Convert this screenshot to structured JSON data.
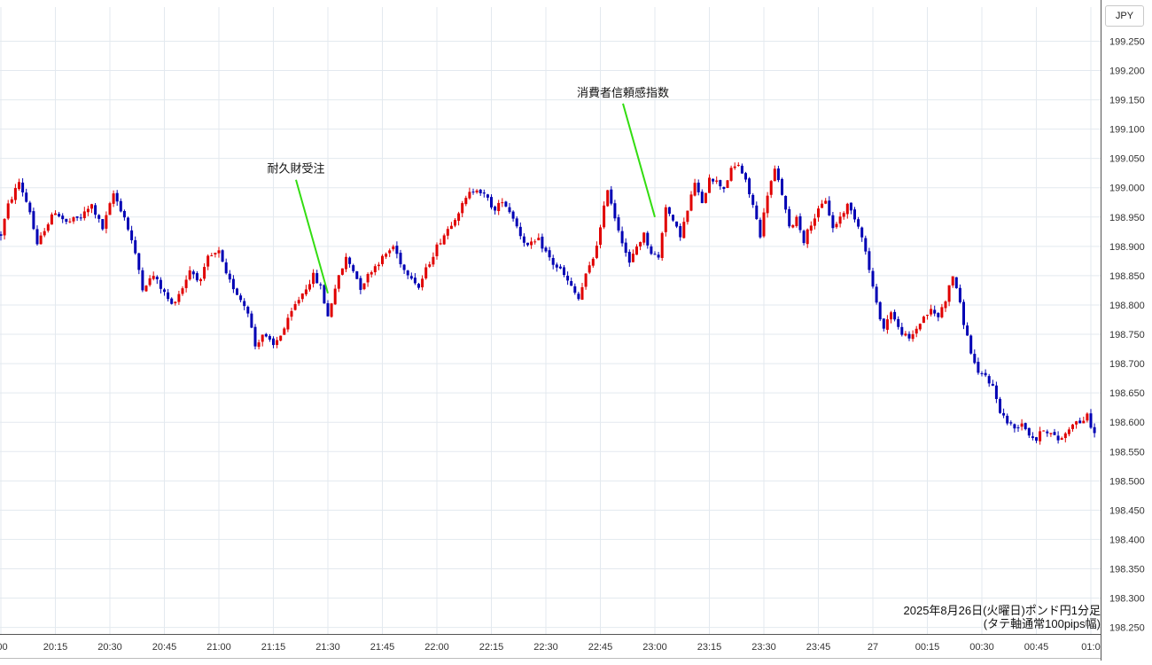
{
  "currency_button": "JPY",
  "caption": {
    "line1": "2025年8月26日(火曜日)ポンド円1分足",
    "line2": "(タテ軸通常100pips幅)"
  },
  "colors": {
    "up": "#e00000",
    "down": "#0000b4",
    "grid": "#e3e9ef",
    "annotation_line": "#33dd11"
  },
  "chart_data": {
    "type": "candlestick",
    "title": "",
    "currency": "JPY",
    "interval": "1 minute",
    "y_range": [
      198.25,
      199.3
    ],
    "y_ticks": [
      "199.250",
      "199.200",
      "199.150",
      "199.100",
      "199.050",
      "199.000",
      "198.950",
      "198.900",
      "198.850",
      "198.800",
      "198.750",
      "198.700",
      "198.650",
      "198.600",
      "198.550",
      "198.500",
      "198.450",
      "198.400",
      "198.350",
      "198.300",
      "198.250"
    ],
    "x_range": [
      "20:00",
      "01:00"
    ],
    "x_ticks": [
      ":00",
      "20:15",
      "20:30",
      "20:45",
      "21:00",
      "21:15",
      "21:30",
      "21:45",
      "22:00",
      "22:15",
      "22:30",
      "22:45",
      "23:00",
      "23:15",
      "23:30",
      "23:45",
      "27",
      "00:15",
      "00:30",
      "00:45",
      "01:0"
    ],
    "x_tick_minutes": [
      0,
      15,
      30,
      45,
      60,
      75,
      90,
      105,
      120,
      135,
      150,
      165,
      180,
      195,
      210,
      225,
      240,
      255,
      270,
      285,
      300
    ],
    "grid": true,
    "close_path": [
      {
        "t": 0,
        "p": 198.92
      },
      {
        "t": 2,
        "p": 198.97
      },
      {
        "t": 5,
        "p": 199.01
      },
      {
        "t": 8,
        "p": 198.96
      },
      {
        "t": 10,
        "p": 198.9
      },
      {
        "t": 12,
        "p": 198.93
      },
      {
        "t": 15,
        "p": 198.96
      },
      {
        "t": 18,
        "p": 198.94
      },
      {
        "t": 22,
        "p": 198.95
      },
      {
        "t": 25,
        "p": 198.97
      },
      {
        "t": 28,
        "p": 198.93
      },
      {
        "t": 31,
        "p": 198.99
      },
      {
        "t": 34,
        "p": 198.95
      },
      {
        "t": 36,
        "p": 198.91
      },
      {
        "t": 38,
        "p": 198.86
      },
      {
        "t": 39,
        "p": 198.83
      },
      {
        "t": 42,
        "p": 198.85
      },
      {
        "t": 45,
        "p": 198.82
      },
      {
        "t": 47,
        "p": 198.8
      },
      {
        "t": 50,
        "p": 198.83
      },
      {
        "t": 52,
        "p": 198.86
      },
      {
        "t": 55,
        "p": 198.84
      },
      {
        "t": 57,
        "p": 198.88
      },
      {
        "t": 60,
        "p": 198.89
      },
      {
        "t": 62,
        "p": 198.85
      },
      {
        "t": 64,
        "p": 198.83
      },
      {
        "t": 66,
        "p": 198.81
      },
      {
        "t": 68,
        "p": 198.79
      },
      {
        "t": 70,
        "p": 198.73
      },
      {
        "t": 72,
        "p": 198.75
      },
      {
        "t": 75,
        "p": 198.73
      },
      {
        "t": 78,
        "p": 198.76
      },
      {
        "t": 81,
        "p": 198.8
      },
      {
        "t": 84,
        "p": 198.83
      },
      {
        "t": 86,
        "p": 198.85
      },
      {
        "t": 88,
        "p": 198.83
      },
      {
        "t": 90,
        "p": 198.78
      },
      {
        "t": 92,
        "p": 198.83
      },
      {
        "t": 95,
        "p": 198.88
      },
      {
        "t": 97,
        "p": 198.86
      },
      {
        "t": 99,
        "p": 198.83
      },
      {
        "t": 102,
        "p": 198.86
      },
      {
        "t": 105,
        "p": 198.88
      },
      {
        "t": 108,
        "p": 198.9
      },
      {
        "t": 111,
        "p": 198.86
      },
      {
        "t": 113,
        "p": 198.85
      },
      {
        "t": 115,
        "p": 198.83
      },
      {
        "t": 117,
        "p": 198.86
      },
      {
        "t": 120,
        "p": 198.9
      },
      {
        "t": 123,
        "p": 198.93
      },
      {
        "t": 126,
        "p": 198.96
      },
      {
        "t": 129,
        "p": 198.99
      },
      {
        "t": 131,
        "p": 199.0
      },
      {
        "t": 134,
        "p": 198.98
      },
      {
        "t": 136,
        "p": 198.96
      },
      {
        "t": 138,
        "p": 198.98
      },
      {
        "t": 141,
        "p": 198.95
      },
      {
        "t": 143,
        "p": 198.92
      },
      {
        "t": 145,
        "p": 198.9
      },
      {
        "t": 148,
        "p": 198.91
      },
      {
        "t": 150,
        "p": 198.89
      },
      {
        "t": 152,
        "p": 198.87
      },
      {
        "t": 154,
        "p": 198.86
      },
      {
        "t": 156,
        "p": 198.84
      },
      {
        "t": 158,
        "p": 198.82
      },
      {
        "t": 159,
        "p": 198.81
      },
      {
        "t": 161,
        "p": 198.85
      },
      {
        "t": 163,
        "p": 198.88
      },
      {
        "t": 165,
        "p": 198.93
      },
      {
        "t": 167,
        "p": 199.0
      },
      {
        "t": 169,
        "p": 198.95
      },
      {
        "t": 171,
        "p": 198.91
      },
      {
        "t": 173,
        "p": 198.87
      },
      {
        "t": 175,
        "p": 198.9
      },
      {
        "t": 177,
        "p": 198.92
      },
      {
        "t": 179,
        "p": 198.89
      },
      {
        "t": 181,
        "p": 198.88
      },
      {
        "t": 183,
        "p": 198.97
      },
      {
        "t": 185,
        "p": 198.94
      },
      {
        "t": 187,
        "p": 198.92
      },
      {
        "t": 189,
        "p": 198.96
      },
      {
        "t": 191,
        "p": 199.01
      },
      {
        "t": 193,
        "p": 198.97
      },
      {
        "t": 195,
        "p": 199.02
      },
      {
        "t": 197,
        "p": 199.01
      },
      {
        "t": 199,
        "p": 199.0
      },
      {
        "t": 201,
        "p": 199.03
      },
      {
        "t": 203,
        "p": 199.04
      },
      {
        "t": 205,
        "p": 199.01
      },
      {
        "t": 207,
        "p": 198.97
      },
      {
        "t": 209,
        "p": 198.92
      },
      {
        "t": 211,
        "p": 198.99
      },
      {
        "t": 213,
        "p": 199.03
      },
      {
        "t": 215,
        "p": 198.99
      },
      {
        "t": 217,
        "p": 198.93
      },
      {
        "t": 219,
        "p": 198.95
      },
      {
        "t": 221,
        "p": 198.91
      },
      {
        "t": 223,
        "p": 198.94
      },
      {
        "t": 225,
        "p": 198.96
      },
      {
        "t": 227,
        "p": 198.98
      },
      {
        "t": 229,
        "p": 198.93
      },
      {
        "t": 231,
        "p": 198.95
      },
      {
        "t": 233,
        "p": 198.97
      },
      {
        "t": 235,
        "p": 198.95
      },
      {
        "t": 237,
        "p": 198.92
      },
      {
        "t": 239,
        "p": 198.86
      },
      {
        "t": 241,
        "p": 198.8
      },
      {
        "t": 243,
        "p": 198.76
      },
      {
        "t": 245,
        "p": 198.79
      },
      {
        "t": 247,
        "p": 198.76
      },
      {
        "t": 250,
        "p": 198.74
      },
      {
        "t": 252,
        "p": 198.76
      },
      {
        "t": 254,
        "p": 198.78
      },
      {
        "t": 256,
        "p": 198.79
      },
      {
        "t": 258,
        "p": 198.78
      },
      {
        "t": 260,
        "p": 198.81
      },
      {
        "t": 262,
        "p": 198.85
      },
      {
        "t": 263,
        "p": 198.83
      },
      {
        "t": 265,
        "p": 198.77
      },
      {
        "t": 267,
        "p": 198.72
      },
      {
        "t": 269,
        "p": 198.68
      },
      {
        "t": 271,
        "p": 198.68
      },
      {
        "t": 273,
        "p": 198.66
      },
      {
        "t": 275,
        "p": 198.62
      },
      {
        "t": 277,
        "p": 198.6
      },
      {
        "t": 279,
        "p": 198.59
      },
      {
        "t": 281,
        "p": 198.6
      },
      {
        "t": 283,
        "p": 198.58
      },
      {
        "t": 285,
        "p": 198.57
      },
      {
        "t": 287,
        "p": 198.59
      },
      {
        "t": 289,
        "p": 198.58
      },
      {
        "t": 291,
        "p": 198.57
      },
      {
        "t": 293,
        "p": 198.58
      },
      {
        "t": 295,
        "p": 198.6
      },
      {
        "t": 297,
        "p": 198.6
      },
      {
        "t": 299,
        "p": 198.61
      },
      {
        "t": 301,
        "p": 198.58
      }
    ],
    "annotations": [
      {
        "label": "耐久財受注",
        "time": 90,
        "price": 198.82
      },
      {
        "label": "消費者信頼感指数",
        "time": 180,
        "price": 198.95
      }
    ]
  }
}
